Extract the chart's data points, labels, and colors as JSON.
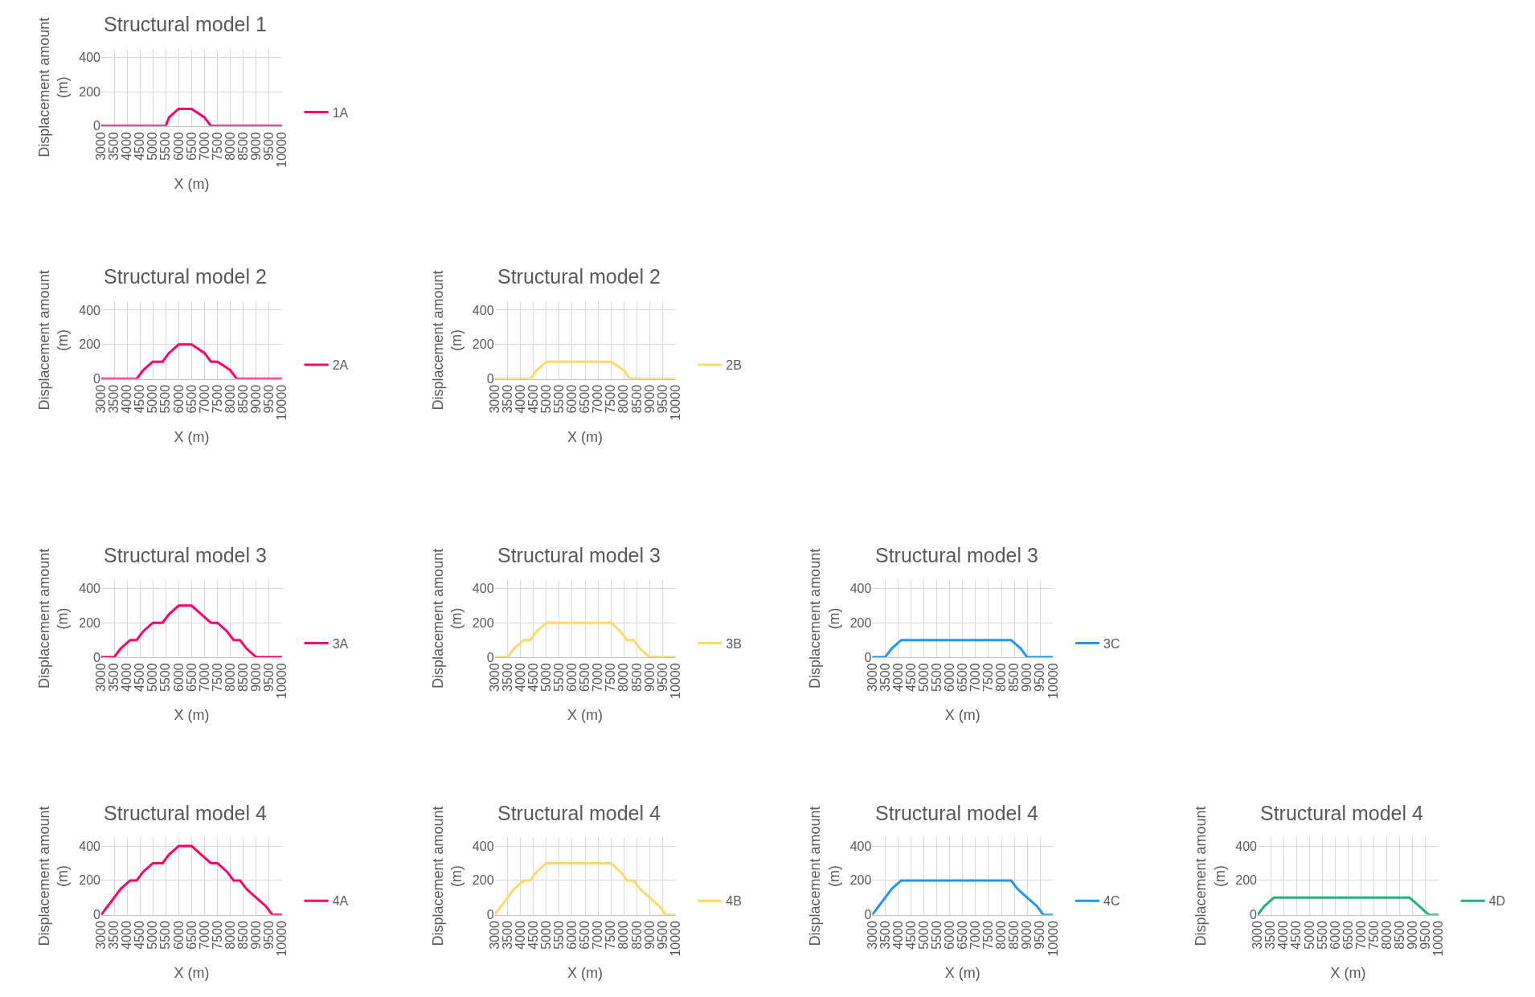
{
  "chart_data": [
    {
      "type": "line",
      "title": "Structural model 1",
      "xlabel": "X (m)",
      "ylabel": "Displacement amount (m)",
      "xlim": [
        3000,
        10000
      ],
      "xticks": [
        3000,
        3500,
        4000,
        4500,
        5000,
        5500,
        6000,
        6500,
        7000,
        7500,
        8000,
        8500,
        9000,
        9500,
        10000
      ],
      "ylim": [
        0,
        450
      ],
      "yticks": [
        0,
        200,
        400
      ],
      "grid": true,
      "legend": "right",
      "series": [
        {
          "name": "1A",
          "color": "#ff0066",
          "x": [
            3000,
            5000,
            5500,
            5625,
            6000,
            6500,
            7000,
            7250,
            7500,
            10000
          ],
          "values": [
            0,
            0,
            0,
            50,
            100,
            100,
            50,
            0,
            0,
            0
          ]
        }
      ]
    },
    {
      "type": "line",
      "title": "Structural model 2",
      "xlabel": "X (m)",
      "ylabel": "Displacement amount (m)",
      "xlim": [
        3000,
        10000
      ],
      "xticks": [
        3000,
        3500,
        4000,
        4500,
        5000,
        5500,
        6000,
        6500,
        7000,
        7500,
        8000,
        8500,
        9000,
        9500,
        10000
      ],
      "ylim": [
        0,
        450
      ],
      "yticks": [
        0,
        200,
        400
      ],
      "grid": true,
      "legend": "right",
      "series": [
        {
          "name": "2A",
          "color": "#ff0066",
          "x": [
            3000,
            4375,
            4625,
            5000,
            5375,
            5625,
            6000,
            6500,
            7000,
            7250,
            7500,
            8000,
            8250,
            10000
          ],
          "values": [
            0,
            0,
            50,
            100,
            100,
            150,
            200,
            200,
            150,
            100,
            100,
            50,
            0,
            0
          ]
        }
      ]
    },
    {
      "type": "line",
      "title": "Structural model 2",
      "xlabel": "X (m)",
      "ylabel": "Displacement amount (m)",
      "xlim": [
        3000,
        10000
      ],
      "xticks": [
        3000,
        3500,
        4000,
        4500,
        5000,
        5500,
        6000,
        6500,
        7000,
        7500,
        8000,
        8500,
        9000,
        9500,
        10000
      ],
      "ylim": [
        0,
        450
      ],
      "yticks": [
        0,
        200,
        400
      ],
      "grid": true,
      "legend": "right",
      "series": [
        {
          "name": "2B",
          "color": "#ffd966",
          "x": [
            3000,
            4375,
            4625,
            5000,
            7500,
            8000,
            8250,
            10000
          ],
          "values": [
            0,
            0,
            50,
            100,
            100,
            50,
            0,
            0
          ]
        }
      ]
    },
    {
      "type": "line",
      "title": "Structural model 3",
      "xlabel": "X (m)",
      "ylabel": "Displacement amount (m)",
      "xlim": [
        3000,
        10000
      ],
      "xticks": [
        3000,
        3500,
        4000,
        4500,
        5000,
        5500,
        6000,
        6500,
        7000,
        7500,
        8000,
        8500,
        9000,
        9500,
        10000
      ],
      "ylim": [
        0,
        450
      ],
      "yticks": [
        0,
        200,
        400
      ],
      "grid": true,
      "legend": "right",
      "series": [
        {
          "name": "3A",
          "color": "#ff0066",
          "x": [
            3000,
            3500,
            3750,
            4125,
            4375,
            4625,
            5000,
            5375,
            5625,
            6000,
            6500,
            6875,
            7250,
            7500,
            7875,
            8125,
            8375,
            8625,
            9000,
            10000
          ],
          "values": [
            0,
            0,
            50,
            100,
            100,
            150,
            200,
            200,
            250,
            300,
            300,
            250,
            200,
            200,
            150,
            100,
            100,
            50,
            0,
            0
          ]
        }
      ]
    },
    {
      "type": "line",
      "title": "Structural model 3",
      "xlabel": "X (m)",
      "ylabel": "Displacement amount (m)",
      "xlim": [
        3000,
        10000
      ],
      "xticks": [
        3000,
        3500,
        4000,
        4500,
        5000,
        5500,
        6000,
        6500,
        7000,
        7500,
        8000,
        8500,
        9000,
        9500,
        10000
      ],
      "ylim": [
        0,
        450
      ],
      "yticks": [
        0,
        200,
        400
      ],
      "grid": true,
      "legend": "right",
      "series": [
        {
          "name": "3B",
          "color": "#ffd966",
          "x": [
            3000,
            3500,
            3750,
            4125,
            4375,
            4625,
            5000,
            7500,
            7875,
            8125,
            8375,
            8625,
            9000,
            10000
          ],
          "values": [
            0,
            0,
            50,
            100,
            100,
            150,
            200,
            200,
            150,
            100,
            100,
            50,
            0,
            0
          ]
        }
      ]
    },
    {
      "type": "line",
      "title": "Structural model 3",
      "xlabel": "X (m)",
      "ylabel": "Displacement amount (m)",
      "xlim": [
        3000,
        10000
      ],
      "xticks": [
        3000,
        3500,
        4000,
        4500,
        5000,
        5500,
        6000,
        6500,
        7000,
        7500,
        8000,
        8500,
        9000,
        9500,
        10000
      ],
      "ylim": [
        0,
        450
      ],
      "yticks": [
        0,
        200,
        400
      ],
      "grid": true,
      "legend": "right",
      "series": [
        {
          "name": "3C",
          "color": "#2196f3",
          "x": [
            3000,
            3500,
            3750,
            4125,
            8375,
            8750,
            9000,
            10000
          ],
          "values": [
            0,
            0,
            50,
            100,
            100,
            50,
            0,
            0
          ]
        }
      ]
    },
    {
      "type": "line",
      "title": "Structural model 4",
      "xlabel": "X (m)",
      "ylabel": "Displacement amount (m)",
      "xlim": [
        3000,
        10000
      ],
      "xticks": [
        3000,
        3500,
        4000,
        4500,
        5000,
        5500,
        6000,
        6500,
        7000,
        7500,
        8000,
        8500,
        9000,
        9500,
        10000
      ],
      "ylim": [
        0,
        450
      ],
      "yticks": [
        0,
        200,
        400
      ],
      "grid": true,
      "legend": "right",
      "series": [
        {
          "name": "4A",
          "color": "#ff0066",
          "x": [
            3000,
            3250,
            3500,
            3750,
            4125,
            4375,
            4625,
            5000,
            5375,
            5625,
            6000,
            6500,
            6875,
            7250,
            7500,
            7875,
            8125,
            8375,
            8625,
            9000,
            9375,
            9625,
            10000
          ],
          "values": [
            0,
            50,
            100,
            150,
            200,
            200,
            250,
            300,
            300,
            350,
            400,
            400,
            350,
            300,
            300,
            250,
            200,
            200,
            150,
            100,
            50,
            0,
            0
          ]
        }
      ]
    },
    {
      "type": "line",
      "title": "Structural model 4",
      "xlabel": "X (m)",
      "ylabel": "Displacement amount (m)",
      "xlim": [
        3000,
        10000
      ],
      "xticks": [
        3000,
        3500,
        4000,
        4500,
        5000,
        5500,
        6000,
        6500,
        7000,
        7500,
        8000,
        8500,
        9000,
        9500,
        10000
      ],
      "ylim": [
        0,
        450
      ],
      "yticks": [
        0,
        200,
        400
      ],
      "grid": true,
      "legend": "right",
      "series": [
        {
          "name": "4B",
          "color": "#ffd966",
          "x": [
            3000,
            3250,
            3500,
            3750,
            4125,
            4375,
            4625,
            5000,
            7500,
            7875,
            8125,
            8375,
            8625,
            9000,
            9375,
            9625,
            10000
          ],
          "values": [
            0,
            50,
            100,
            150,
            200,
            200,
            250,
            300,
            300,
            250,
            200,
            200,
            150,
            100,
            50,
            0,
            0
          ]
        }
      ]
    },
    {
      "type": "line",
      "title": "Structural model 4",
      "xlabel": "X (m)",
      "ylabel": "Displacement amount (m)",
      "xlim": [
        3000,
        10000
      ],
      "xticks": [
        3000,
        3500,
        4000,
        4500,
        5000,
        5500,
        6000,
        6500,
        7000,
        7500,
        8000,
        8500,
        9000,
        9500,
        10000
      ],
      "ylim": [
        0,
        450
      ],
      "yticks": [
        0,
        200,
        400
      ],
      "grid": true,
      "legend": "right",
      "series": [
        {
          "name": "4C",
          "color": "#2196f3",
          "x": [
            3000,
            3250,
            3500,
            3750,
            4125,
            8375,
            8625,
            9000,
            9375,
            9625,
            10000
          ],
          "values": [
            0,
            50,
            100,
            150,
            200,
            200,
            150,
            100,
            50,
            0,
            0
          ]
        }
      ]
    },
    {
      "type": "line",
      "title": "Structural model 4",
      "xlabel": "X (m)",
      "ylabel": "Displacement amount (m)",
      "xlim": [
        3000,
        10000
      ],
      "xticks": [
        3000,
        3500,
        4000,
        4500,
        5000,
        5500,
        6000,
        6500,
        7000,
        7500,
        8000,
        8500,
        9000,
        9500,
        10000
      ],
      "ylim": [
        0,
        450
      ],
      "yticks": [
        0,
        200,
        400
      ],
      "grid": true,
      "legend": "right",
      "series": [
        {
          "name": "4D",
          "color": "#1fb57a",
          "x": [
            3000,
            3250,
            3625,
            8875,
            9250,
            9625,
            10000
          ],
          "values": [
            0,
            50,
            100,
            100,
            50,
            0,
            0
          ]
        }
      ]
    }
  ]
}
